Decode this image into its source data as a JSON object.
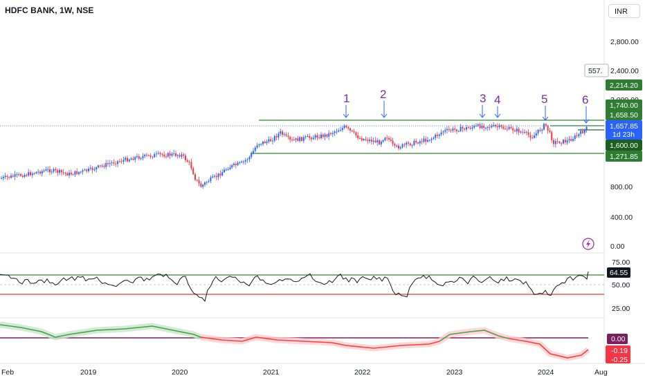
{
  "header": {
    "symbol_title": "HDFC BANK, 1W, NSE",
    "currency": "INR"
  },
  "price_axis": {
    "ticks": [
      "2,800.00",
      "2,400.00",
      "2,000.00",
      "800.00",
      "400.00",
      "0.00"
    ]
  },
  "price_tags": {
    "crosshair": "557.",
    "level_2214": "2,214.20",
    "level_1740": "1,740.00",
    "level_1658": "1,658.50",
    "last_price": "1,657.85",
    "countdown": "1d 23h",
    "level_1600": "1,600.00",
    "level_1271": "1,271.85"
  },
  "annotations": [
    "1",
    "2",
    "3",
    "4",
    "5",
    "6"
  ],
  "rsi_panel": {
    "ticks": [
      "75.00",
      "50.00",
      "25.00"
    ],
    "current": "64.55"
  },
  "oscillator_panel": {
    "zero_tag": "0.00",
    "value_a": "-0.19",
    "value_b": "-0.25"
  },
  "time_axis": {
    "labels": [
      "Feb",
      "2019",
      "2020",
      "2021",
      "2022",
      "2023",
      "2024",
      "Aug"
    ]
  },
  "colors": {
    "up": "#2962ff",
    "down": "#f23645",
    "level_line": "#2a8a2a",
    "rsi_low": "#e53935",
    "annotation": "#7b2aa4",
    "zero_line": "#7a1f5c"
  }
}
